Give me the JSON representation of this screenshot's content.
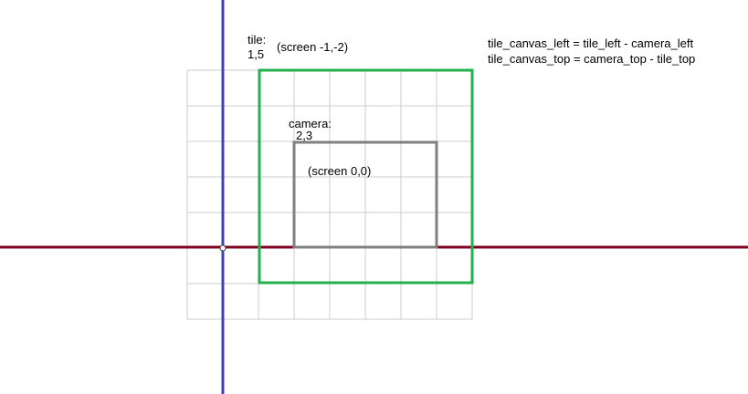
{
  "labels": {
    "tile_title": "tile:",
    "tile_coords": "1,5",
    "tile_screen": "(screen -1,-2)",
    "camera_title": "camera:",
    "camera_coords": "2,3",
    "camera_screen": "(screen 0,0)",
    "formula_left": "tile_canvas_left = tile_left - camera_left",
    "formula_top": "tile_canvas_top = camera_top - tile_top"
  },
  "colors": {
    "grid": "#cccccc",
    "x_axis": "#800020",
    "y_axis": "#3f3fbf",
    "tile_rect": "#22b14c",
    "camera_rect": "#808080",
    "origin_marker": "#404040"
  },
  "grid": {
    "columns": 8,
    "rows": 7
  }
}
